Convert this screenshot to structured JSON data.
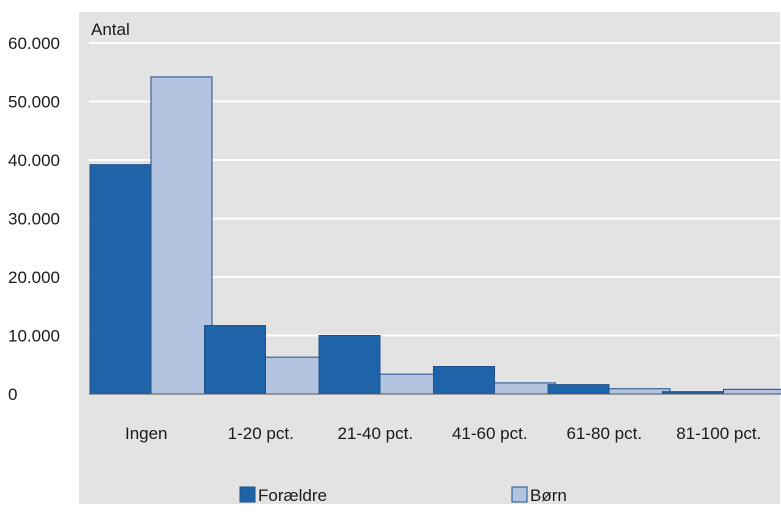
{
  "chart_data": {
    "type": "bar",
    "title": "",
    "ylabel": "Antal",
    "xlabel": "",
    "categories": [
      "Ingen",
      "1-20 pct.",
      "21-40 pct.",
      "41-60 pct.",
      "61-80 pct.",
      "81-100 pct."
    ],
    "series": [
      {
        "name": "Forældre",
        "color": "#1f64a8",
        "values": [
          39200,
          11700,
          10000,
          4700,
          1600,
          400
        ]
      },
      {
        "name": "Børn",
        "color": "#b3c4e0",
        "values": [
          54200,
          6300,
          3400,
          1900,
          900,
          800
        ]
      }
    ],
    "ylim": [
      0,
      60000
    ],
    "yticks": [
      0,
      10000,
      20000,
      30000,
      40000,
      50000,
      60000
    ],
    "ytick_labels": [
      "0",
      "10.000",
      "20.000",
      "30.000",
      "40.000",
      "50.000",
      "60.000"
    ],
    "grid": true,
    "legend_position": "bottom",
    "background_color": "#e3e3e3",
    "grid_color": "#ffffff",
    "bar_edge_color": "#1f4f8a"
  }
}
